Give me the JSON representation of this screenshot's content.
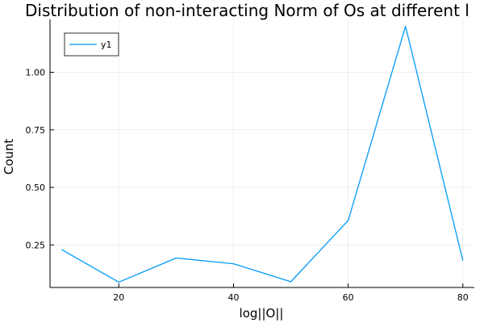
{
  "chart_data": {
    "type": "line",
    "title": "Distribution of non-interacting Norm of Os at different l",
    "xlabel": "log||O||",
    "ylabel": "Count",
    "xlim": [
      8,
      82
    ],
    "ylim": [
      0.065,
      1.23
    ],
    "xticks": [
      20,
      40,
      60,
      80
    ],
    "yticks": [
      0.25,
      0.5,
      0.75,
      1.0
    ],
    "xtick_labels": [
      "20",
      "40",
      "60",
      "80"
    ],
    "ytick_labels": [
      "0.25",
      "0.50",
      "0.75",
      "1.00"
    ],
    "grid": true,
    "legend": {
      "placement": "top-left",
      "entries": [
        "y1"
      ]
    },
    "series": [
      {
        "name": "y1",
        "color": "#009af9",
        "x": [
          10,
          20,
          30,
          40,
          50,
          60,
          70,
          80
        ],
        "y": [
          0.23,
          0.088,
          0.193,
          0.168,
          0.09,
          0.356,
          1.2,
          0.182
        ]
      }
    ]
  }
}
